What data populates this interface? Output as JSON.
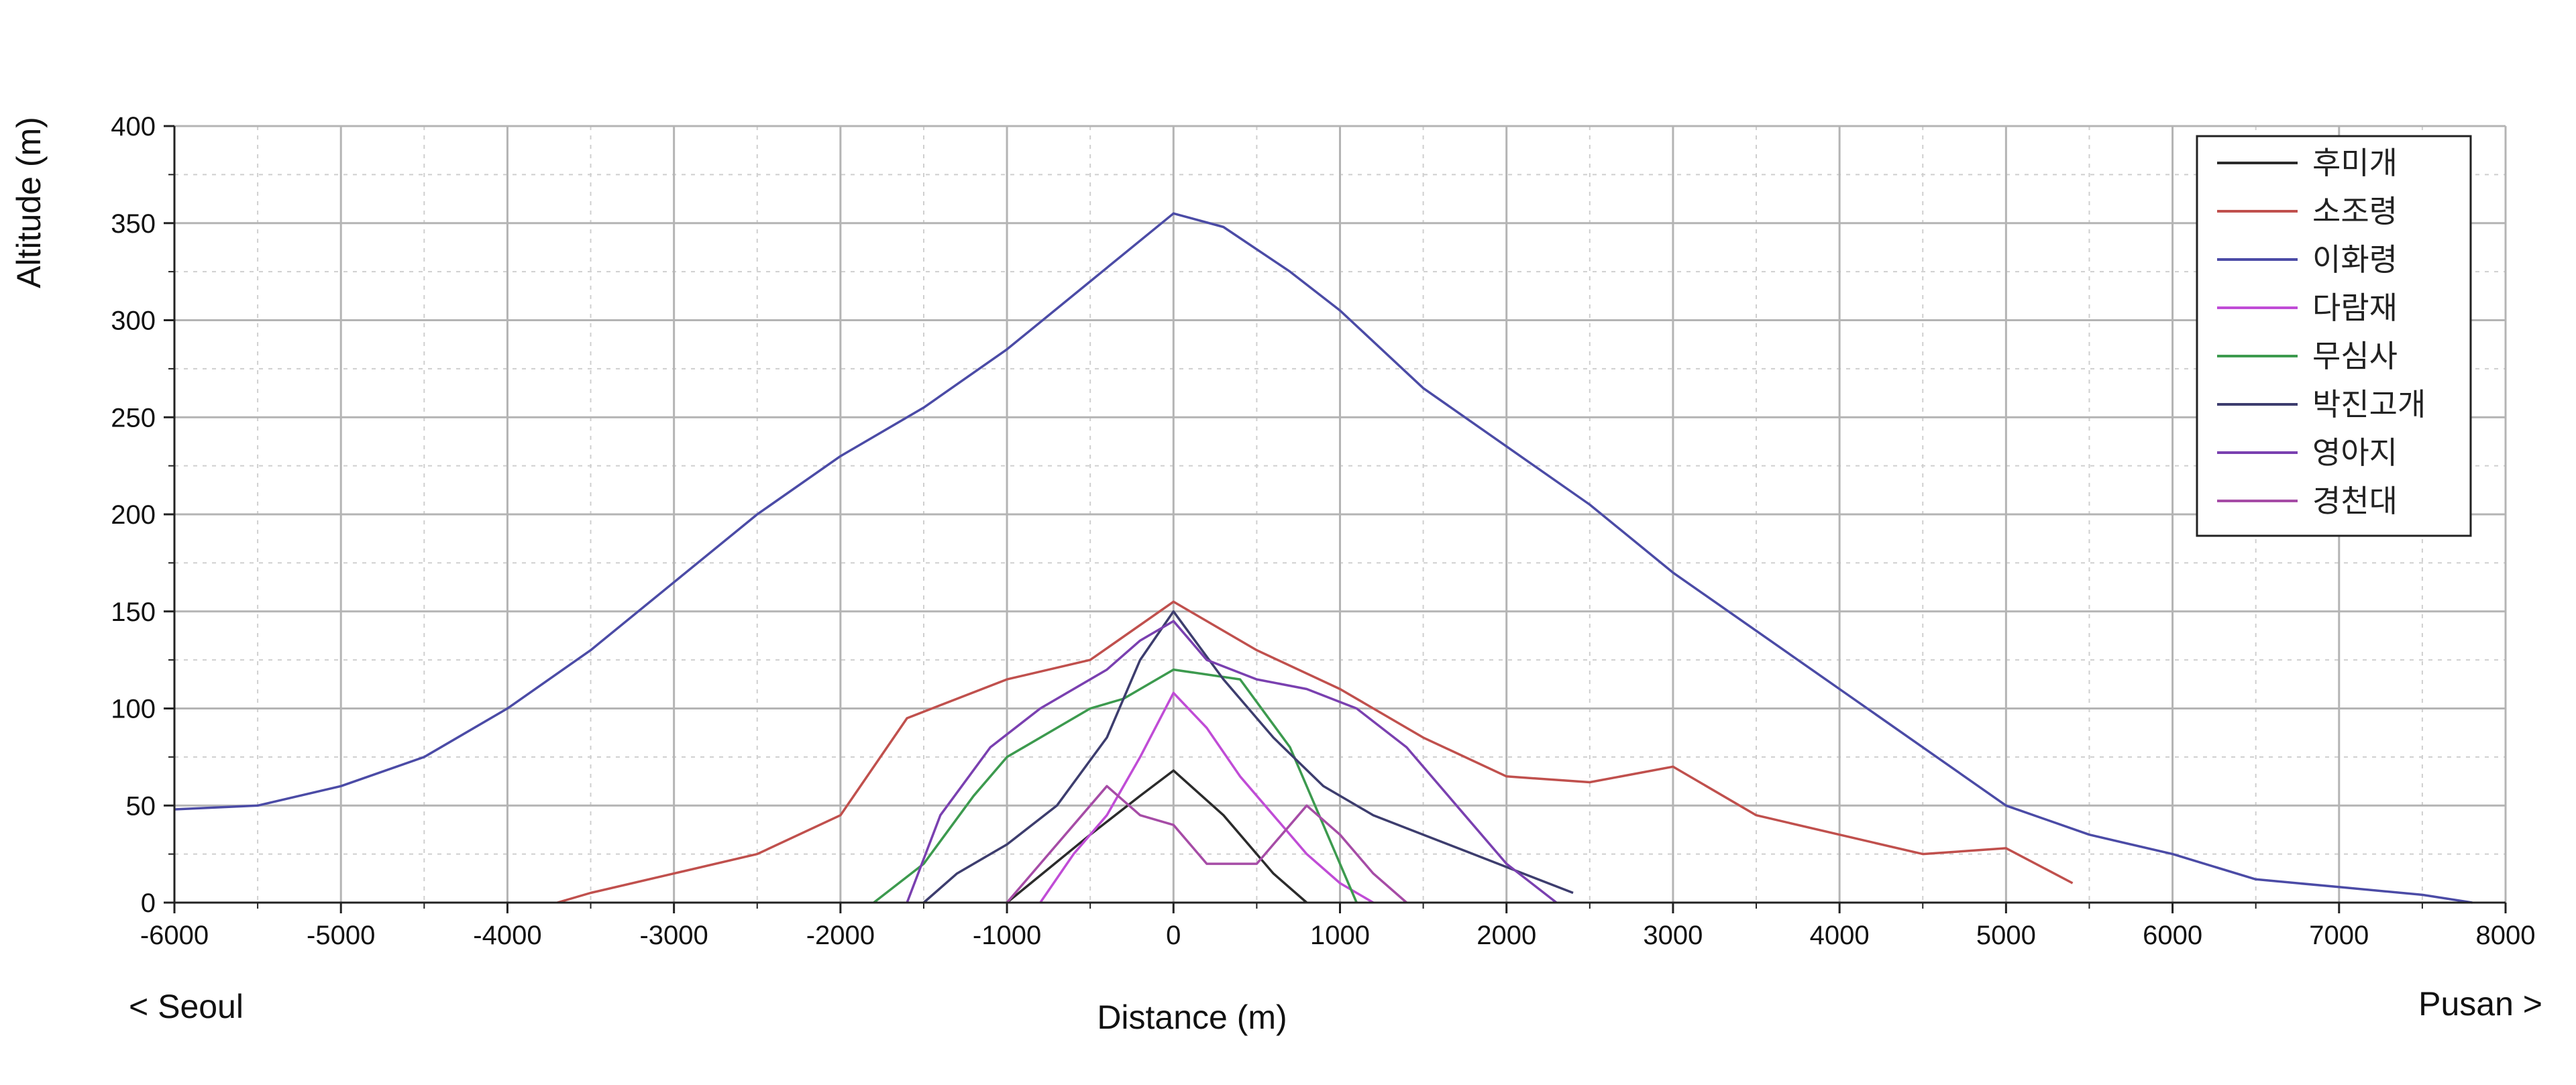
{
  "chart_data": {
    "type": "line",
    "title": "",
    "xlabel": "Distance (m)",
    "ylabel": "Altitude (m)",
    "xlim": [
      -6000,
      8000
    ],
    "ylim": [
      0,
      400
    ],
    "x_ticks": [
      -6000,
      -5000,
      -4000,
      -3000,
      -2000,
      -1000,
      0,
      1000,
      2000,
      3000,
      4000,
      5000,
      6000,
      7000,
      8000
    ],
    "y_ticks": [
      0,
      50,
      100,
      150,
      200,
      250,
      300,
      350,
      400
    ],
    "grid": true,
    "legend_position": "top-right",
    "left_annotation": "< Seoul",
    "right_annotation": "Pusan >",
    "series": [
      {
        "name": "후미개",
        "color": "#2b2b2b",
        "x": [
          -1000,
          -500,
          -200,
          0,
          300,
          600,
          800
        ],
        "y": [
          0,
          35,
          55,
          68,
          45,
          15,
          0
        ]
      },
      {
        "name": "소조령",
        "color": "#c0504d",
        "x": [
          -3700,
          -3500,
          -3000,
          -2500,
          -2000,
          -1600,
          -1000,
          -500,
          0,
          500,
          1000,
          1500,
          2000,
          2500,
          3000,
          3500,
          4000,
          4500,
          5000,
          5400
        ],
        "y": [
          0,
          5,
          15,
          25,
          45,
          95,
          115,
          125,
          155,
          130,
          110,
          85,
          65,
          62,
          70,
          45,
          35,
          25,
          28,
          10
        ]
      },
      {
        "name": "이화령",
        "color": "#4b4ba6",
        "x": [
          -6000,
          -5500,
          -5000,
          -4500,
          -4000,
          -3500,
          -3000,
          -2500,
          -2000,
          -1500,
          -1000,
          -500,
          0,
          300,
          700,
          1000,
          1500,
          2000,
          2500,
          3000,
          3500,
          4000,
          4500,
          5000,
          5500,
          6000,
          6500,
          7000,
          7500,
          7800
        ],
        "y": [
          48,
          50,
          60,
          75,
          100,
          130,
          165,
          200,
          230,
          255,
          285,
          320,
          355,
          348,
          325,
          305,
          265,
          235,
          205,
          170,
          140,
          110,
          80,
          50,
          35,
          25,
          12,
          8,
          4,
          0
        ]
      },
      {
        "name": "다람재",
        "color": "#c04cd6",
        "x": [
          -800,
          -600,
          -400,
          -200,
          0,
          200,
          400,
          600,
          800,
          1000,
          1200
        ],
        "y": [
          0,
          25,
          45,
          75,
          108,
          90,
          65,
          45,
          25,
          10,
          0
        ]
      },
      {
        "name": "무심사",
        "color": "#3c9a4e",
        "x": [
          -1800,
          -1500,
          -1200,
          -1000,
          -700,
          -500,
          -300,
          0,
          400,
          700,
          900,
          1100
        ],
        "y": [
          0,
          20,
          55,
          75,
          90,
          100,
          105,
          120,
          115,
          80,
          40,
          0
        ]
      },
      {
        "name": "박진고개",
        "color": "#3d3d6e",
        "x": [
          -1500,
          -1300,
          -1000,
          -700,
          -400,
          -200,
          0,
          300,
          600,
          900,
          1200,
          1500,
          1800,
          2100,
          2400
        ],
        "y": [
          0,
          15,
          30,
          50,
          85,
          125,
          150,
          115,
          85,
          60,
          45,
          35,
          25,
          15,
          5
        ]
      },
      {
        "name": "영아지",
        "color": "#7a40b0",
        "x": [
          -1600,
          -1400,
          -1100,
          -800,
          -400,
          -200,
          0,
          200,
          500,
          800,
          1100,
          1400,
          1700,
          2000,
          2300
        ],
        "y": [
          0,
          45,
          80,
          100,
          120,
          135,
          145,
          125,
          115,
          110,
          100,
          80,
          50,
          20,
          0
        ]
      },
      {
        "name": "경천대",
        "color": "#a64ca6",
        "x": [
          -1000,
          -800,
          -600,
          -400,
          -200,
          0,
          200,
          500,
          800,
          1000,
          1200,
          1400
        ],
        "y": [
          0,
          20,
          40,
          60,
          45,
          40,
          20,
          20,
          50,
          35,
          15,
          0
        ]
      }
    ]
  }
}
